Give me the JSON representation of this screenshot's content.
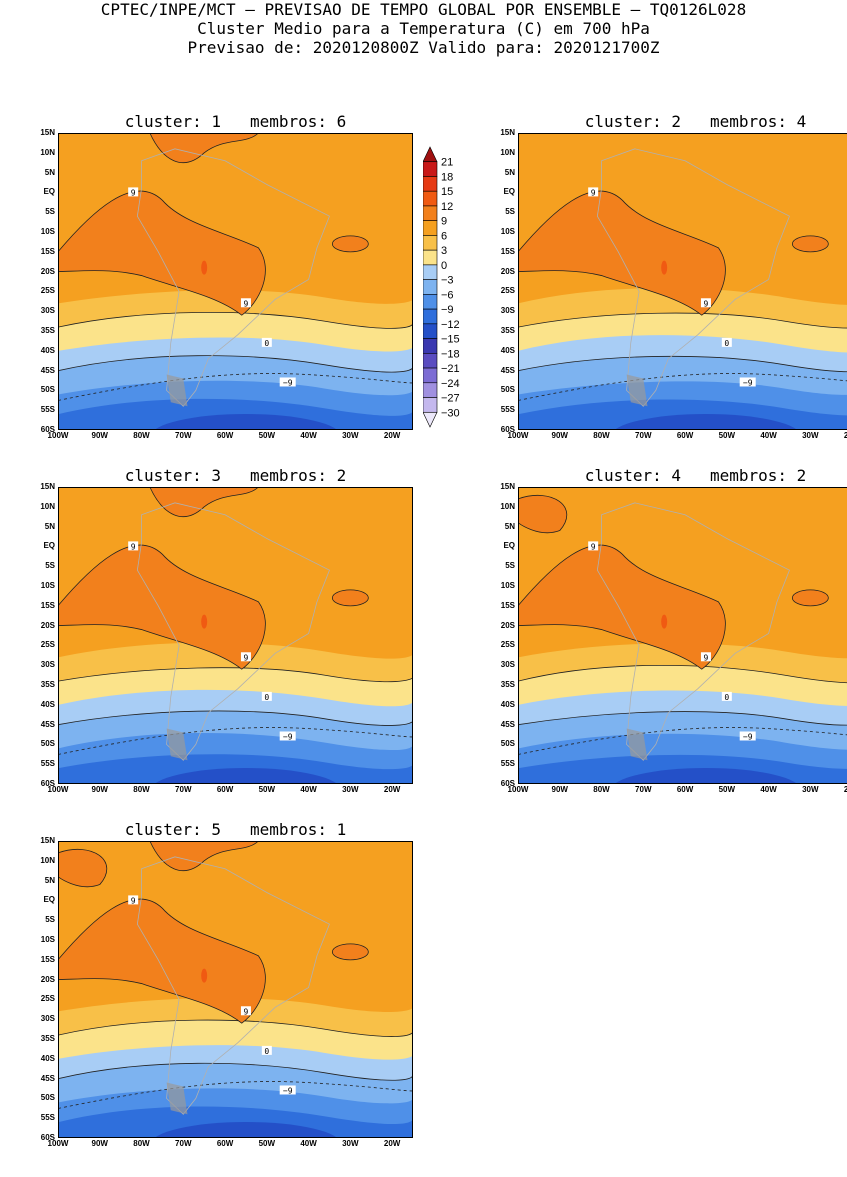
{
  "header": {
    "line1": "CPTEC/INPE/MCT – PREVISAO DE TEMPO GLOBAL POR ENSEMBLE – TQ0126L028",
    "line2": "Cluster Medio para a Temperatura (C) em 700 hPa",
    "line3": "Previsao de: 2020120800Z   Valido para: 2020121700Z"
  },
  "axes": {
    "lat_labels": [
      "15N",
      "10N",
      "5N",
      "EQ",
      "5S",
      "10S",
      "15S",
      "20S",
      "25S",
      "30S",
      "35S",
      "40S",
      "45S",
      "50S",
      "55S",
      "60S"
    ],
    "lon_labels": [
      "100W",
      "90W",
      "80W",
      "70W",
      "60W",
      "50W",
      "40W",
      "30W",
      "20W"
    ]
  },
  "colorbar": {
    "levels": [
      "21",
      "18",
      "15",
      "12",
      "9",
      "6",
      "3",
      "0",
      "−3",
      "−6",
      "−9",
      "−12",
      "−15",
      "−18",
      "−21",
      "−24",
      "−27",
      "−30"
    ],
    "colors": [
      "#a01010",
      "#c81818",
      "#e63a14",
      "#f05a12",
      "#f2801c",
      "#f5a020",
      "#f8c048",
      "#fbe38a",
      "#a8cdf5",
      "#7db3f0",
      "#4f90e8",
      "#2f6fdc",
      "#2450c8",
      "#3a38b0",
      "#5a4cc0",
      "#7c6cd4",
      "#a090e0",
      "#c4b8ee",
      "#ece8fa"
    ]
  },
  "panels": [
    {
      "title": "cluster: 1   membros: 6"
    },
    {
      "title": "cluster: 2   membros: 4"
    },
    {
      "title": "cluster: 3   membros: 2"
    },
    {
      "title": "cluster: 4   membros: 2"
    },
    {
      "title": "cluster: 5   membros: 1"
    }
  ],
  "contour_labels": {
    "warm": "9",
    "zero": "0",
    "cold": "−9"
  }
}
